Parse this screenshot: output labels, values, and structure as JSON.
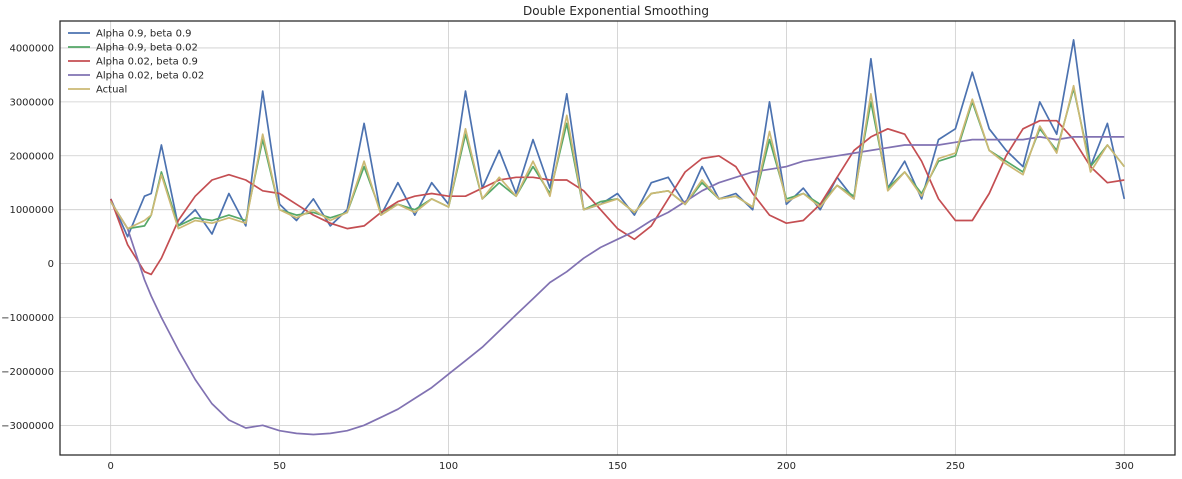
{
  "chart_data": {
    "type": "line",
    "title": "Double Exponential Smoothing",
    "xlabel": "",
    "ylabel": "",
    "xlim": [
      -15,
      315
    ],
    "ylim": [
      -3550000,
      4500000
    ],
    "grid": true,
    "legend_position": "top-left",
    "x_ticks": [
      0,
      50,
      100,
      150,
      200,
      250,
      300
    ],
    "x_tick_labels": [
      "0",
      "50",
      "100",
      "150",
      "200",
      "250",
      "300"
    ],
    "y_ticks": [
      -3000000,
      -2000000,
      -1000000,
      0,
      1000000,
      2000000,
      3000000,
      4000000
    ],
    "y_tick_labels": [
      "−3000000",
      "−2000000",
      "−1000000",
      "0",
      "1000000",
      "2000000",
      "3000000",
      "4000000"
    ],
    "x": [
      0,
      5,
      10,
      12,
      15,
      20,
      25,
      30,
      35,
      40,
      45,
      50,
      55,
      60,
      65,
      70,
      75,
      80,
      85,
      90,
      95,
      100,
      105,
      110,
      115,
      120,
      125,
      130,
      135,
      140,
      145,
      150,
      155,
      160,
      165,
      170,
      175,
      180,
      185,
      190,
      195,
      200,
      205,
      210,
      215,
      220,
      225,
      230,
      235,
      240,
      245,
      250,
      255,
      260,
      265,
      270,
      275,
      280,
      285,
      290,
      295,
      300
    ],
    "series": [
      {
        "name": "Alpha 0.9, beta 0.9",
        "color": "#4c72b0",
        "values": [
          1200000,
          500000,
          1250000,
          1300000,
          2200000,
          700000,
          1000000,
          550000,
          1300000,
          700000,
          3200000,
          1100000,
          800000,
          1200000,
          700000,
          1000000,
          2600000,
          900000,
          1500000,
          900000,
          1500000,
          1100000,
          3200000,
          1400000,
          2100000,
          1300000,
          2300000,
          1400000,
          3150000,
          1000000,
          1100000,
          1300000,
          900000,
          1500000,
          1600000,
          1100000,
          1800000,
          1200000,
          1300000,
          1000000,
          3000000,
          1100000,
          1400000,
          1000000,
          1600000,
          1200000,
          3800000,
          1400000,
          1900000,
          1200000,
          2300000,
          2500000,
          3550000,
          2500000,
          2100000,
          1800000,
          3000000,
          2400000,
          4150000,
          1800000,
          2600000,
          1200000
        ]
      },
      {
        "name": "Alpha 0.9, beta 0.02",
        "color": "#55a868",
        "values": [
          1150000,
          650000,
          700000,
          900000,
          1700000,
          700000,
          850000,
          800000,
          900000,
          800000,
          2300000,
          1000000,
          900000,
          950000,
          850000,
          950000,
          1800000,
          950000,
          1100000,
          1000000,
          1200000,
          1050000,
          2400000,
          1200000,
          1500000,
          1250000,
          1800000,
          1300000,
          2600000,
          1000000,
          1150000,
          1200000,
          950000,
          1300000,
          1350000,
          1100000,
          1500000,
          1200000,
          1250000,
          1050000,
          2300000,
          1200000,
          1300000,
          1100000,
          1450000,
          1250000,
          3000000,
          1400000,
          1700000,
          1300000,
          1900000,
          2000000,
          3000000,
          2100000,
          1900000,
          1700000,
          2500000,
          2100000,
          3250000,
          1800000,
          2200000,
          1800000
        ]
      },
      {
        "name": "Alpha 0.02, beta 0.9",
        "color": "#c44e52",
        "values": [
          1200000,
          350000,
          -150000,
          -200000,
          100000,
          800000,
          1250000,
          1550000,
          1650000,
          1550000,
          1350000,
          1300000,
          1100000,
          900000,
          750000,
          650000,
          700000,
          950000,
          1150000,
          1250000,
          1300000,
          1250000,
          1250000,
          1400000,
          1550000,
          1600000,
          1600000,
          1550000,
          1550000,
          1350000,
          1000000,
          650000,
          450000,
          700000,
          1200000,
          1700000,
          1950000,
          2000000,
          1800000,
          1300000,
          900000,
          750000,
          800000,
          1100000,
          1600000,
          2100000,
          2350000,
          2500000,
          2400000,
          1900000,
          1200000,
          800000,
          800000,
          1300000,
          2000000,
          2500000,
          2650000,
          2650000,
          2300000,
          1800000,
          1500000,
          1550000
        ]
      },
      {
        "name": "Alpha 0.02, beta 0.02",
        "color": "#8172b2",
        "values": [
          1150000,
          650000,
          -300000,
          -600000,
          -1000000,
          -1600000,
          -2150000,
          -2600000,
          -2900000,
          -3050000,
          -3000000,
          -3100000,
          -3150000,
          -3170000,
          -3150000,
          -3100000,
          -3000000,
          -2850000,
          -2700000,
          -2500000,
          -2300000,
          -2050000,
          -1800000,
          -1550000,
          -1250000,
          -950000,
          -650000,
          -350000,
          -150000,
          100000,
          300000,
          450000,
          600000,
          800000,
          950000,
          1150000,
          1350000,
          1500000,
          1600000,
          1700000,
          1750000,
          1800000,
          1900000,
          1950000,
          2000000,
          2050000,
          2100000,
          2150000,
          2200000,
          2200000,
          2200000,
          2250000,
          2300000,
          2300000,
          2300000,
          2300000,
          2350000,
          2300000,
          2350000,
          2350000,
          2350000,
          2350000
        ]
      },
      {
        "name": "Actual",
        "color": "#ccb974",
        "values": [
          1150000,
          650000,
          800000,
          900000,
          1650000,
          650000,
          800000,
          750000,
          850000,
          750000,
          2400000,
          1000000,
          850000,
          1000000,
          800000,
          950000,
          1900000,
          900000,
          1100000,
          950000,
          1200000,
          1050000,
          2500000,
          1200000,
          1600000,
          1250000,
          1900000,
          1250000,
          2750000,
          1000000,
          1100000,
          1200000,
          950000,
          1300000,
          1350000,
          1100000,
          1550000,
          1200000,
          1250000,
          1050000,
          2450000,
          1150000,
          1300000,
          1050000,
          1450000,
          1200000,
          3150000,
          1350000,
          1700000,
          1250000,
          1950000,
          2050000,
          3050000,
          2100000,
          1850000,
          1650000,
          2550000,
          2050000,
          3300000,
          1700000,
          2200000,
          1800000
        ]
      }
    ]
  }
}
